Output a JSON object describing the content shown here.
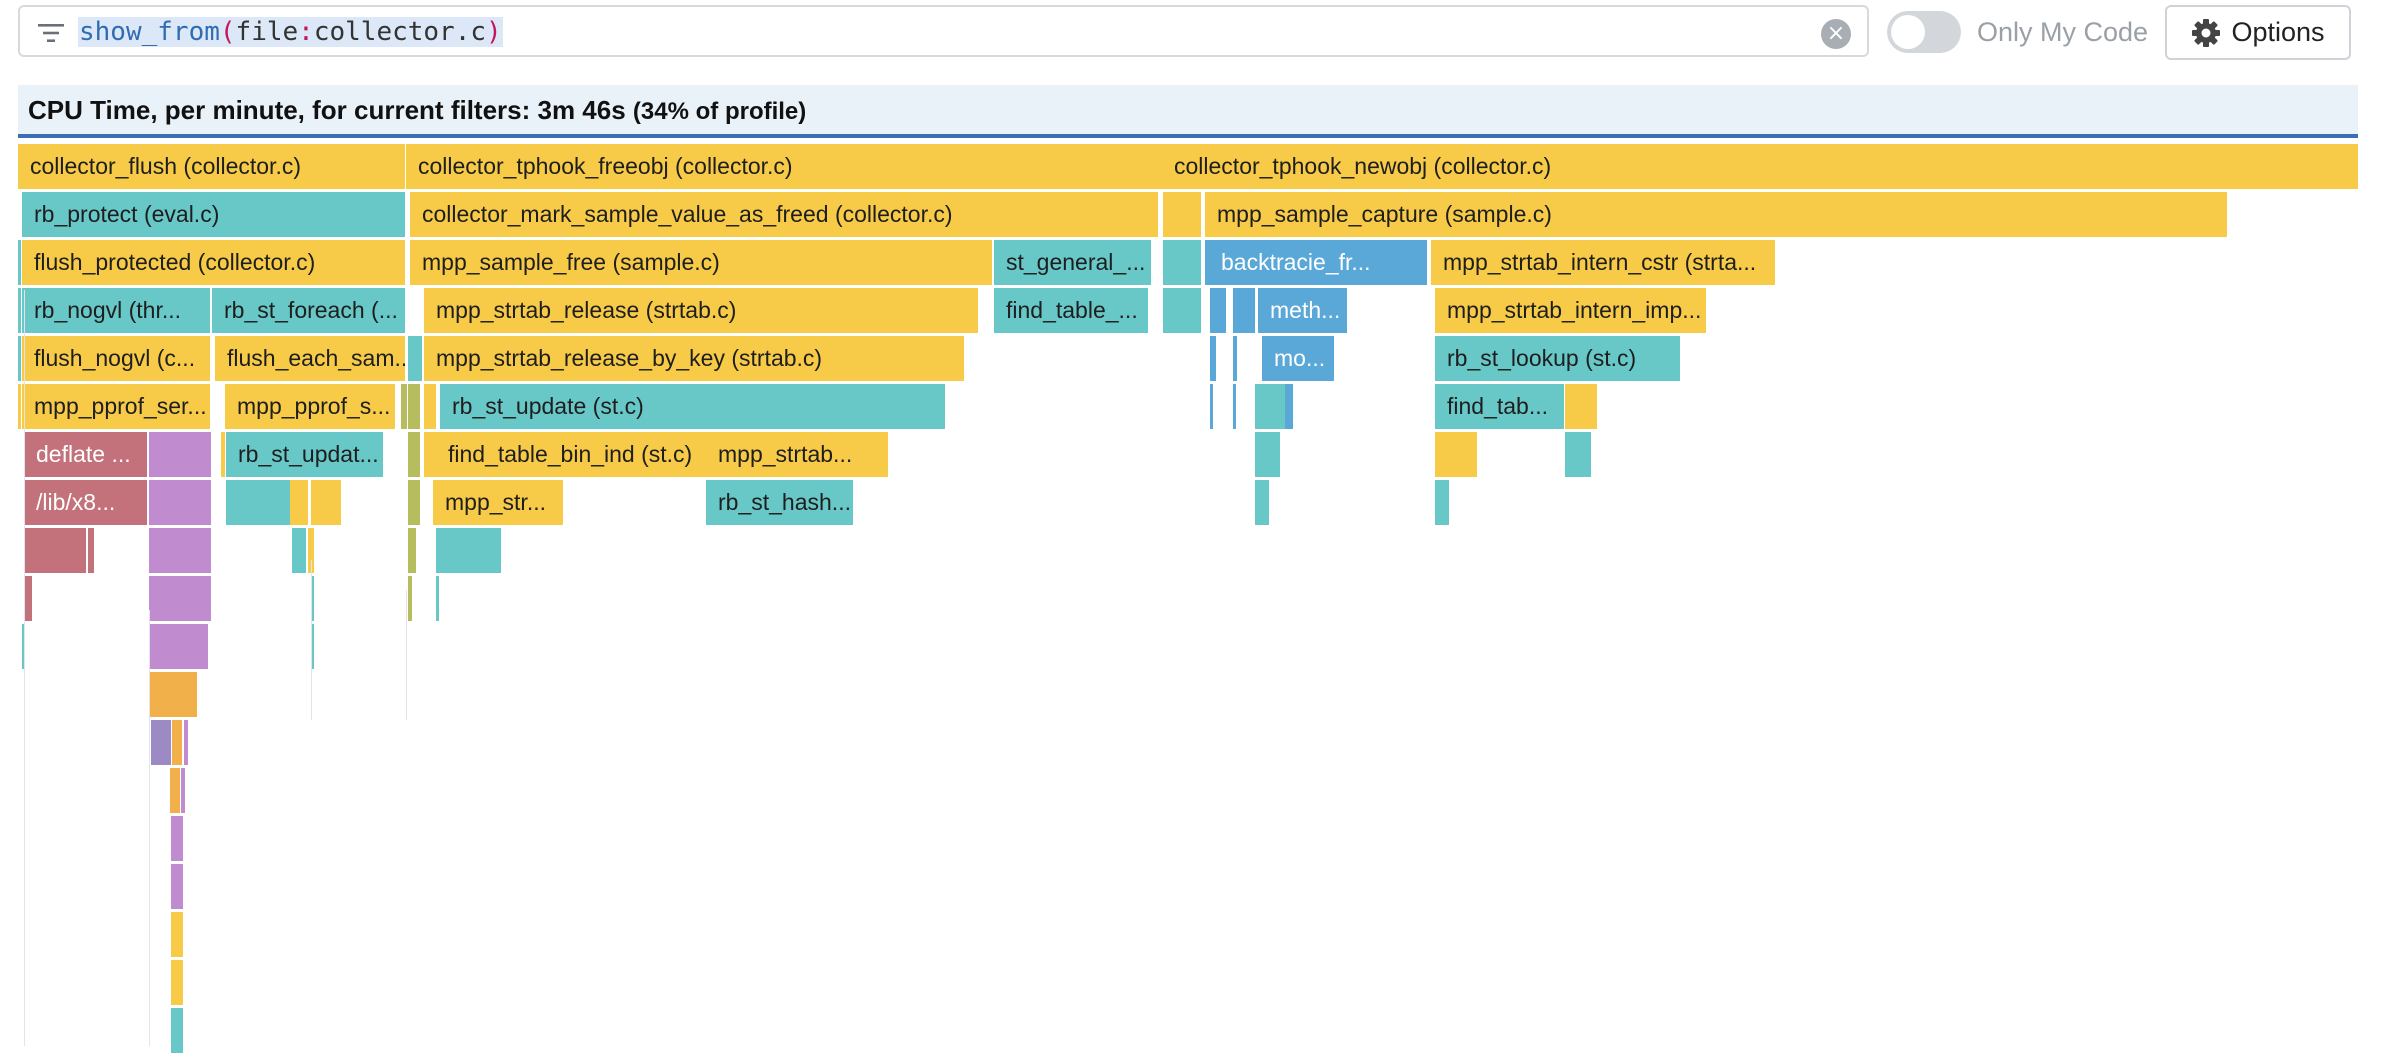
{
  "filter": {
    "fn": "show_from",
    "open_paren": "(",
    "key": "file",
    "colon": ":",
    "value": "collector.c",
    "close_paren": ")",
    "filter_icon": "filter-lines-icon",
    "clear_icon": "clear-circle-icon"
  },
  "toggle": {
    "label": "Only My Code",
    "on": false
  },
  "options": {
    "label": "Options",
    "icon": "gear-icon"
  },
  "header": {
    "title": "CPU Time, per minute, for current filters: 3m 46s",
    "pct": "(34% of profile)"
  },
  "colors": {
    "yellow": "#f7cb47",
    "teal": "#68c8c8",
    "blue": "#59a8d8",
    "red": "#c3717b",
    "purple": "#c08ccf",
    "orange": "#f2b04a",
    "olive": "#b6bd5e",
    "violet": "#9c8ac5",
    "header_accent": "#3d6db5"
  },
  "flame": {
    "labeled": [
      {
        "text": "collector_flush (collector.c)",
        "color": "yellow",
        "level": 0
      },
      {
        "text": "collector_tphook_freeobj (collector.c)",
        "color": "yellow",
        "level": 0
      },
      {
        "text": "collector_tphook_newobj (collector.c)",
        "color": "yellow",
        "level": 0
      },
      {
        "text": "rb_protect (eval.c)",
        "color": "teal",
        "level": 1
      },
      {
        "text": "collector_mark_sample_value_as_freed (collector.c)",
        "color": "yellow",
        "level": 1
      },
      {
        "text": "mpp_sample_capture (sample.c)",
        "color": "yellow",
        "level": 1
      },
      {
        "text": "flush_protected (collector.c)",
        "color": "yellow",
        "level": 2
      },
      {
        "text": "mpp_sample_free (sample.c)",
        "color": "yellow",
        "level": 2
      },
      {
        "text": "st_general_...",
        "color": "teal",
        "level": 2
      },
      {
        "text": "backtracie_fr...",
        "color": "blue",
        "level": 2
      },
      {
        "text": "mpp_strtab_intern_cstr (strta...",
        "color": "yellow",
        "level": 2
      },
      {
        "text": "rb_nogvl (thr...",
        "color": "teal",
        "level": 3
      },
      {
        "text": "rb_st_foreach (...",
        "color": "teal",
        "level": 3
      },
      {
        "text": "mpp_strtab_release (strtab.c)",
        "color": "yellow",
        "level": 3
      },
      {
        "text": "find_table_...",
        "color": "teal",
        "level": 3
      },
      {
        "text": "meth...",
        "color": "blue",
        "level": 3
      },
      {
        "text": "mpp_strtab_intern_imp...",
        "color": "yellow",
        "level": 3
      },
      {
        "text": "flush_nogvl (c...",
        "color": "yellow",
        "level": 4
      },
      {
        "text": "flush_each_sam...",
        "color": "yellow",
        "level": 4
      },
      {
        "text": "mpp_strtab_release_by_key (strtab.c)",
        "color": "yellow",
        "level": 4
      },
      {
        "text": "mo...",
        "color": "blue",
        "level": 4
      },
      {
        "text": "rb_st_lookup (st.c)",
        "color": "teal",
        "level": 4
      },
      {
        "text": "mpp_pprof_ser...",
        "color": "yellow",
        "level": 5
      },
      {
        "text": "mpp_pprof_s...",
        "color": "yellow",
        "level": 5
      },
      {
        "text": "rb_st_update (st.c)",
        "color": "teal",
        "level": 5
      },
      {
        "text": "find_tab...",
        "color": "teal",
        "level": 5
      },
      {
        "text": "deflate ...",
        "color": "red",
        "level": 6
      },
      {
        "text": "rb_st_updat...",
        "color": "teal",
        "level": 6
      },
      {
        "text": "find_table_bin_ind (st.c)",
        "color": "yellow",
        "level": 6
      },
      {
        "text": "mpp_strtab...",
        "color": "yellow",
        "level": 6
      },
      {
        "text": "/lib/x8...",
        "color": "red",
        "level": 7
      },
      {
        "text": "mpp_str...",
        "color": "yellow",
        "level": 7
      },
      {
        "text": "rb_st_hash...",
        "color": "teal",
        "level": 7
      }
    ]
  }
}
